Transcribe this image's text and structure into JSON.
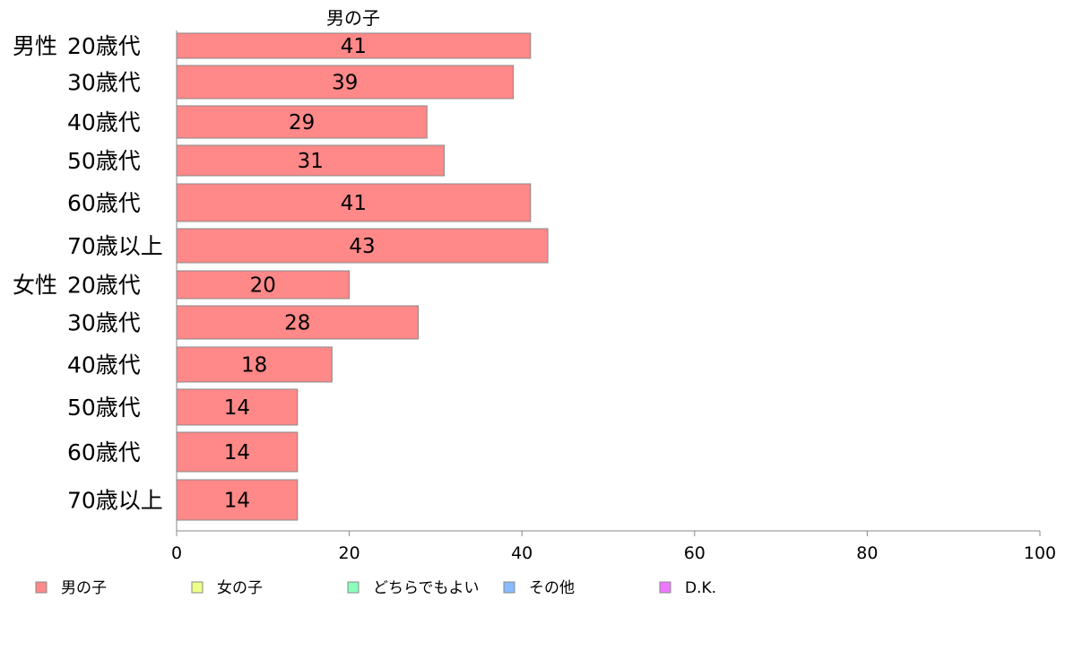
{
  "chart_data": {
    "type": "bar",
    "orientation": "horizontal",
    "series_header": "男の子",
    "groups": [
      "男性",
      "女性"
    ],
    "categories": [
      {
        "group": "男性",
        "label": "20歳代"
      },
      {
        "group": "",
        "label": "30歳代"
      },
      {
        "group": "",
        "label": "40歳代"
      },
      {
        "group": "",
        "label": "50歳代"
      },
      {
        "group": "",
        "label": "60歳代"
      },
      {
        "group": "",
        "label": "70歳以上"
      },
      {
        "group": "女性",
        "label": "20歳代"
      },
      {
        "group": "",
        "label": "30歳代"
      },
      {
        "group": "",
        "label": "40歳代"
      },
      {
        "group": "",
        "label": "50歳代"
      },
      {
        "group": "",
        "label": "60歳代"
      },
      {
        "group": "",
        "label": "70歳以上"
      }
    ],
    "series": [
      {
        "name": "男の子",
        "color": "#ff8888",
        "values": [
          41,
          39,
          29,
          31,
          41,
          43,
          20,
          28,
          18,
          14,
          14,
          14
        ]
      }
    ],
    "value_labels": [
      "41",
      "39",
      "29",
      "31",
      "41",
      "43",
      "20",
      "28",
      "18",
      "14",
      "14",
      "14"
    ],
    "xlim": [
      0,
      100
    ],
    "xticks": [
      0,
      20,
      40,
      60,
      80,
      100
    ],
    "grid": false,
    "legend": {
      "placement": "bottom",
      "items": [
        {
          "name": "男の子",
          "color": "#ff8888"
        },
        {
          "name": "女の子",
          "color": "#eeff88"
        },
        {
          "name": "どちらでもよい",
          "color": "#88ffbb"
        },
        {
          "name": "その他",
          "color": "#88bbff"
        },
        {
          "name": "D.K.",
          "color": "#ee77ff"
        }
      ]
    }
  }
}
